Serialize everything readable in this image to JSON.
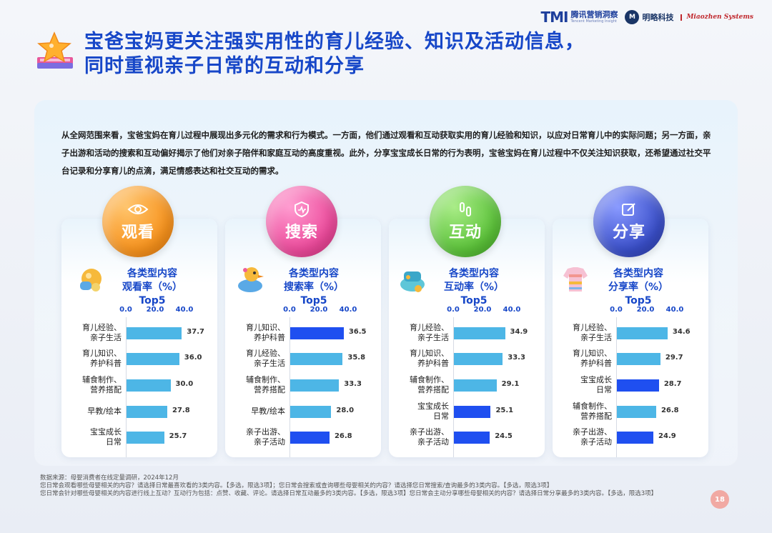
{
  "logos": {
    "tmi_mark": "TMI",
    "tmi_cn": "腾讯营销洞察",
    "tmi_en": "Tencent Marketing Insight",
    "mingle_cn": "明略科技",
    "miaozhen": "Miaozhen Systems"
  },
  "title": {
    "line1": "宝爸宝妈更关注强实用性的育儿经验、知识及活动信息，",
    "line2": "同时重视亲子日常的互动和分享"
  },
  "summary": "从全网范围来看，宝爸宝妈在育儿过程中展现出多元化的需求和行为模式。一方面，他们通过观看和互动获取实用的育儿经验和知识，以应对日常育儿中的实际问题；另一方面，亲子出游和活动的搜索和互动偏好揭示了他们对亲子陪伴和家庭互动的高度重视。此外，分享宝宝成长日常的行为表明，宝爸宝妈在育儿过程中不仅关注知识获取，还希望通过社交平台记录和分享育儿的点滴，满足情感表达和社交互动的需求。",
  "colors": {
    "bar_light": "#4db6e6",
    "bar_highlight": "#1f4ff0",
    "watch": "#f7931e",
    "search": "#ec4a9b",
    "interact": "#5cc23a",
    "share": "#3a4fc9"
  },
  "axis_ticks": [
    "0.0",
    "20.0",
    "40.0"
  ],
  "chart_data": [
    {
      "type": "bar",
      "orientation": "horizontal",
      "group_label": "观看",
      "title_lines": [
        "各类型内容",
        "观看率（%）",
        "Top5"
      ],
      "xlim": [
        0,
        40
      ],
      "categories": [
        "育儿经验、亲子生活",
        "育儿知识、养护科普",
        "辅食制作、营养搭配",
        "早教/绘本",
        "宝宝成长日常"
      ],
      "values": [
        37.7,
        36.0,
        30.0,
        27.8,
        25.7
      ],
      "highlight": [
        false,
        false,
        false,
        false,
        false
      ]
    },
    {
      "type": "bar",
      "orientation": "horizontal",
      "group_label": "搜索",
      "title_lines": [
        "各类型内容",
        "搜索率（%）",
        "Top5"
      ],
      "xlim": [
        0,
        40
      ],
      "categories": [
        "育儿知识、养护科普",
        "育儿经验、亲子生活",
        "辅食制作、营养搭配",
        "早教/绘本",
        "亲子出游、亲子活动"
      ],
      "values": [
        36.5,
        35.8,
        33.3,
        28.0,
        26.8
      ],
      "highlight": [
        true,
        false,
        false,
        false,
        true
      ]
    },
    {
      "type": "bar",
      "orientation": "horizontal",
      "group_label": "互动",
      "title_lines": [
        "各类型内容",
        "互动率（%）",
        "Top5"
      ],
      "xlim": [
        0,
        40
      ],
      "categories": [
        "育儿经验、亲子生活",
        "育儿知识、养护科普",
        "辅食制作、营养搭配",
        "宝宝成长日常",
        "亲子出游、亲子活动"
      ],
      "values": [
        34.9,
        33.3,
        29.1,
        25.1,
        24.5
      ],
      "highlight": [
        false,
        false,
        false,
        true,
        true
      ]
    },
    {
      "type": "bar",
      "orientation": "horizontal",
      "group_label": "分享",
      "title_lines": [
        "各类型内容",
        "分享率（%）",
        "Top5"
      ],
      "xlim": [
        0,
        40
      ],
      "categories": [
        "育儿经验、亲子生活",
        "育儿知识、养护科普",
        "宝宝成长日常",
        "辅食制作、营养搭配",
        "亲子出游、亲子活动"
      ],
      "values": [
        34.6,
        29.7,
        28.7,
        26.8,
        24.9
      ],
      "highlight": [
        false,
        false,
        true,
        false,
        true
      ]
    }
  ],
  "footer": {
    "line1": "数据来源：母婴消费者在线定量调研，2024年12月",
    "line2": "您日常会观看哪些母婴相关的内容？请选择日常最喜欢看的3类内容。【多选，限选3项】；您日常会搜索或查询哪些母婴相关的内容？请选择您日常搜索/查询最多的3类内容。【多选，限选3项】",
    "line3": "您日常会针对哪些母婴相关的内容进行线上互动？互动行为包括：点赞、收藏、评论。请选择日常互动最多的3类内容。【多选，限选3项】您日常会主动分享哪些母婴相关的内容？请选择日常分享最多的3类内容。【多选，限选3项】"
  },
  "page_number": "18"
}
